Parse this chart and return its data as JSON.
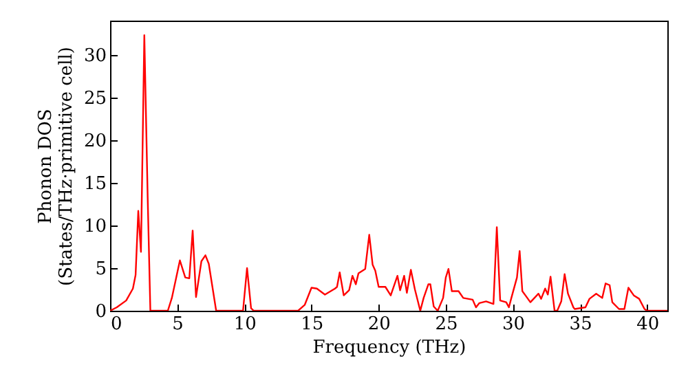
{
  "chart_data": {
    "type": "line",
    "xlabel": "Frequency (THz)",
    "ylabel": "Phonon DOS\n(States/THz·primitive cell)",
    "xlim": [
      0,
      41.5
    ],
    "ylim": [
      0,
      34
    ],
    "xticks": [
      0,
      5,
      10,
      15,
      20,
      25,
      30,
      35,
      40
    ],
    "yticks": [
      0,
      5,
      10,
      15,
      20,
      25,
      30
    ],
    "grid": false,
    "marker": "none",
    "line_style": "solid",
    "series": [
      {
        "color": "#ff0000",
        "x": [
          0,
          0.5,
          1.2,
          1.7,
          1.9,
          2.1,
          2.3,
          2.55,
          2.8,
          3.0,
          4.3,
          4.6,
          5.2,
          5.6,
          5.9,
          6.15,
          6.4,
          6.8,
          7.1,
          7.35,
          7.9,
          9.9,
          10.2,
          10.5,
          10.7,
          14.0,
          14.5,
          15.0,
          15.4,
          16.0,
          16.75,
          16.9,
          17.1,
          17.4,
          17.8,
          18.05,
          18.3,
          18.5,
          19.0,
          19.3,
          19.55,
          19.75,
          20.0,
          20.5,
          20.9,
          21.4,
          21.6,
          21.9,
          22.1,
          22.4,
          22.7,
          23.1,
          23.35,
          23.7,
          23.85,
          24.1,
          24.4,
          24.8,
          25.0,
          25.2,
          25.45,
          25.95,
          26.3,
          27.0,
          27.25,
          27.5,
          28.0,
          28.55,
          28.8,
          29.05,
          29.5,
          29.7,
          29.9,
          30.3,
          30.5,
          30.7,
          31.3,
          31.9,
          32.1,
          32.4,
          32.6,
          32.8,
          33.1,
          33.3,
          33.6,
          33.85,
          34.1,
          34.5,
          34.6,
          35.4,
          35.7,
          36.2,
          36.65,
          36.9,
          37.2,
          37.4,
          37.9,
          38.3,
          38.6,
          39.0,
          39.4,
          39.8,
          40.0,
          41.5
        ],
        "values": [
          0,
          0.4,
          1.2,
          2.6,
          4.2,
          11.7,
          6.9,
          32.3,
          13.3,
          0,
          0,
          1.5,
          5.9,
          3.9,
          3.8,
          9.4,
          1.6,
          5.8,
          6.5,
          5.5,
          0,
          0,
          5.0,
          0.3,
          0,
          0,
          0.7,
          2.7,
          2.6,
          1.9,
          2.6,
          2.8,
          4.5,
          1.8,
          2.4,
          4.1,
          3.1,
          4.4,
          4.9,
          8.9,
          5.4,
          4.7,
          2.8,
          2.8,
          1.8,
          4.1,
          2.4,
          4.1,
          2.1,
          4.8,
          2.5,
          0,
          1.5,
          3.1,
          3.1,
          0.5,
          0,
          1.5,
          3.9,
          4.9,
          2.3,
          2.3,
          1.5,
          1.3,
          0.4,
          0.9,
          1.1,
          0.8,
          9.8,
          1.2,
          1.0,
          0.4,
          1.6,
          3.9,
          7.0,
          2.3,
          1.0,
          2.0,
          1.4,
          2.6,
          1.9,
          4.0,
          0,
          0,
          1.1,
          4.3,
          2.0,
          0.4,
          0.2,
          0.4,
          1.4,
          2.0,
          1.5,
          3.2,
          3.0,
          1.0,
          0.2,
          0.2,
          2.7,
          1.8,
          1.4,
          0.2,
          0,
          0
        ]
      }
    ]
  }
}
